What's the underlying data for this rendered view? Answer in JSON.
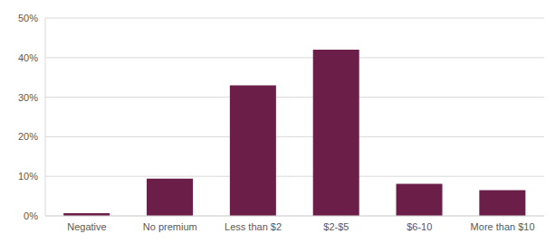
{
  "chart_data": {
    "type": "bar",
    "categories": [
      "Negative",
      "No premium",
      "Less than $2",
      "$2-$5",
      "$6-10",
      "More than $10"
    ],
    "values": [
      0.7,
      9.4,
      33,
      42,
      8.1,
      6.5
    ],
    "color": "#6a1e48",
    "ylim": [
      0,
      50
    ],
    "yticks": [
      {
        "value": 0,
        "label": "0%"
      },
      {
        "value": 10,
        "label": "10%"
      },
      {
        "value": 20,
        "label": "20%"
      },
      {
        "value": 30,
        "label": "30%"
      },
      {
        "value": 40,
        "label": "40%"
      },
      {
        "value": 50,
        "label": "50%"
      }
    ],
    "grid": true
  }
}
